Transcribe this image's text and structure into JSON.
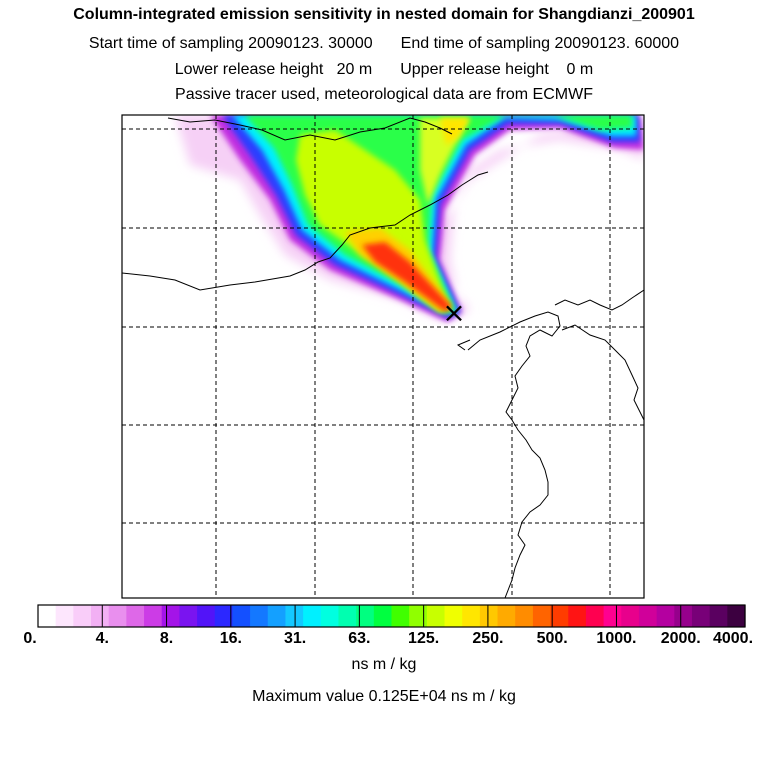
{
  "header": {
    "title": "Column-integrated emission sensitivity in nested domain for Shangdianzi_200901",
    "start_label": "Start time of sampling 20090123. 30000",
    "end_label": "End time of sampling 20090123. 60000",
    "lower_label": "Lower release height   20 m",
    "upper_label": "Upper release height    0 m",
    "info": "Passive tracer used, meteorological data are from ECMWF"
  },
  "colorbar": {
    "ticks": [
      "0.",
      "4.",
      "8.",
      "16.",
      "31.",
      "63.",
      "125.",
      "250.",
      "500.",
      "1000.",
      "2000.",
      "4000."
    ],
    "units": "ns m / kg",
    "colors": [
      "#ffffff",
      "#fde6fd",
      "#f9cdf9",
      "#f2b0f4",
      "#e98fee",
      "#de68e8",
      "#cc3ce6",
      "#a414e8",
      "#7a14f0",
      "#5214f8",
      "#2c28ff",
      "#1450ff",
      "#1478ff",
      "#14a0ff",
      "#14c8ff",
      "#00f0ff",
      "#00ffe0",
      "#00ffb0",
      "#00ff80",
      "#00ff40",
      "#40ff00",
      "#90ff00",
      "#c8ff00",
      "#f0ff00",
      "#ffe600",
      "#ffc800",
      "#ffaa00",
      "#ff8c00",
      "#ff6400",
      "#ff3c00",
      "#ff1414",
      "#ff0050",
      "#ff0090",
      "#e8008c",
      "#d0009a",
      "#b400a0",
      "#96008c",
      "#780078",
      "#5a0060",
      "#3c0040"
    ]
  },
  "max_value": "Maximum value  0.125E+04 ns m / kg",
  "map": {
    "receptor_marker": "×"
  }
}
